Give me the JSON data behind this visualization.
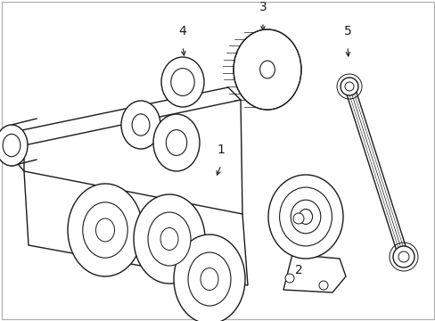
{
  "background_color": "#ffffff",
  "line_color": "#1a1a1a",
  "lw": 1.0,
  "fig_width": 4.89,
  "fig_height": 3.6,
  "border_color": "#aaaaaa"
}
